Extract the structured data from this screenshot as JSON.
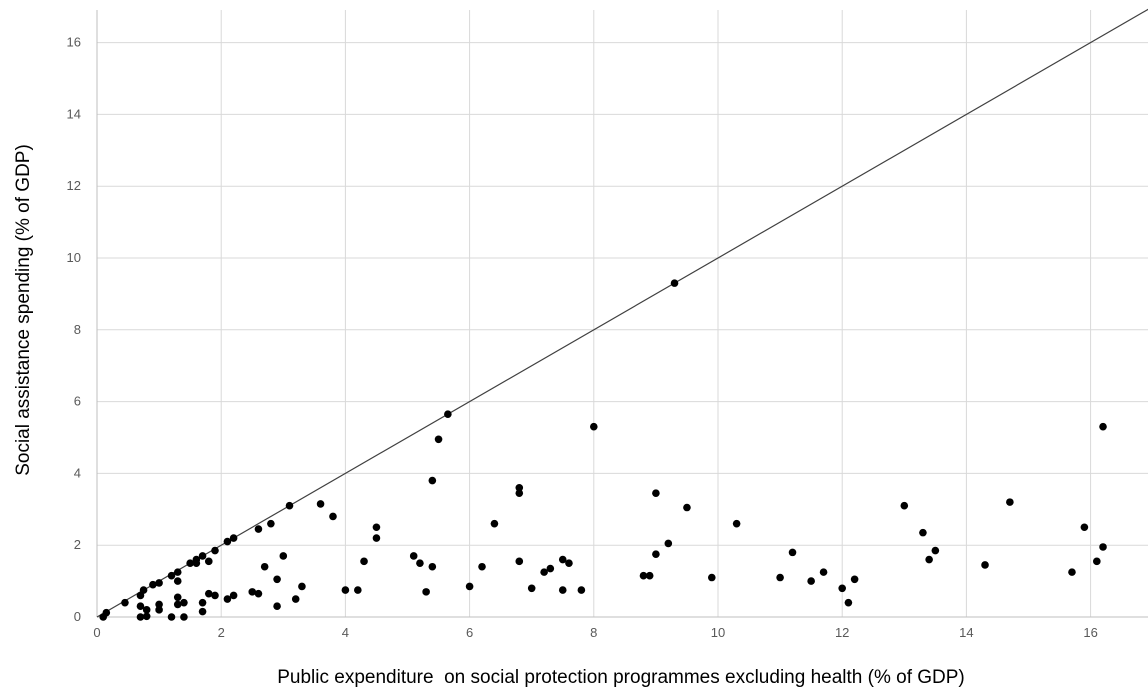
{
  "chart_data": {
    "type": "scatter",
    "xlabel": "Public expenditure  on social protection programmes excluding health (% of GDP)",
    "ylabel": "Social assistance spending (% of GDP)",
    "xlim": [
      0,
      17
    ],
    "ylim": [
      0,
      17
    ],
    "xticks": [
      0,
      2,
      4,
      6,
      8,
      10,
      12,
      14,
      16
    ],
    "yticks": [
      0,
      2,
      4,
      6,
      8,
      10,
      12,
      14,
      16
    ],
    "grid": "vertical and horizontal",
    "legend": "none",
    "reference_line": {
      "type": "y=x",
      "from": [
        0,
        0
      ],
      "to": [
        17,
        17
      ],
      "color": "#404040"
    },
    "marker_color": "#000000",
    "points": [
      [
        0.1,
        0.0
      ],
      [
        0.15,
        0.12
      ],
      [
        0.45,
        0.4
      ],
      [
        0.7,
        0.0
      ],
      [
        0.7,
        0.3
      ],
      [
        0.7,
        0.6
      ],
      [
        0.75,
        0.75
      ],
      [
        0.8,
        0.2
      ],
      [
        0.8,
        0.02
      ],
      [
        0.9,
        0.9
      ],
      [
        1.0,
        0.95
      ],
      [
        1.0,
        0.35
      ],
      [
        1.0,
        0.2
      ],
      [
        1.2,
        1.15
      ],
      [
        1.2,
        0.0
      ],
      [
        1.3,
        1.25
      ],
      [
        1.3,
        1.0
      ],
      [
        1.3,
        0.55
      ],
      [
        1.3,
        0.35
      ],
      [
        1.4,
        0.4
      ],
      [
        1.4,
        0.0
      ],
      [
        1.5,
        1.5
      ],
      [
        1.6,
        1.5
      ],
      [
        1.6,
        1.6
      ],
      [
        1.7,
        1.7
      ],
      [
        1.7,
        0.4
      ],
      [
        1.7,
        0.15
      ],
      [
        1.8,
        1.55
      ],
      [
        1.8,
        0.65
      ],
      [
        1.9,
        1.85
      ],
      [
        1.9,
        0.6
      ],
      [
        2.1,
        2.1
      ],
      [
        2.1,
        0.5
      ],
      [
        2.2,
        2.2
      ],
      [
        2.2,
        0.6
      ],
      [
        2.5,
        0.7
      ],
      [
        2.6,
        2.45
      ],
      [
        2.6,
        0.65
      ],
      [
        2.7,
        1.4
      ],
      [
        2.8,
        2.6
      ],
      [
        2.9,
        1.05
      ],
      [
        2.9,
        0.3
      ],
      [
        3.0,
        1.7
      ],
      [
        3.1,
        3.1
      ],
      [
        3.2,
        0.5
      ],
      [
        3.3,
        0.85
      ],
      [
        3.6,
        3.15
      ],
      [
        3.8,
        2.8
      ],
      [
        4.0,
        0.75
      ],
      [
        4.2,
        0.75
      ],
      [
        4.3,
        1.55
      ],
      [
        4.5,
        2.5
      ],
      [
        4.5,
        2.2
      ],
      [
        5.1,
        1.7
      ],
      [
        5.2,
        1.5
      ],
      [
        5.3,
        0.7
      ],
      [
        5.4,
        3.8
      ],
      [
        5.4,
        1.4
      ],
      [
        5.5,
        4.95
      ],
      [
        5.65,
        5.65
      ],
      [
        6.0,
        0.85
      ],
      [
        6.2,
        1.4
      ],
      [
        6.4,
        2.6
      ],
      [
        6.8,
        3.6
      ],
      [
        6.8,
        3.45
      ],
      [
        6.8,
        1.55
      ],
      [
        7.0,
        0.8
      ],
      [
        7.2,
        1.25
      ],
      [
        7.3,
        1.35
      ],
      [
        7.5,
        1.6
      ],
      [
        7.5,
        0.75
      ],
      [
        7.6,
        1.5
      ],
      [
        7.8,
        0.75
      ],
      [
        8.0,
        5.3
      ],
      [
        8.8,
        1.15
      ],
      [
        8.9,
        1.15
      ],
      [
        9.0,
        3.45
      ],
      [
        9.0,
        1.75
      ],
      [
        9.2,
        2.05
      ],
      [
        9.3,
        9.3
      ],
      [
        9.5,
        3.05
      ],
      [
        9.9,
        1.1
      ],
      [
        10.3,
        2.6
      ],
      [
        11.0,
        1.1
      ],
      [
        11.2,
        1.8
      ],
      [
        11.5,
        1.0
      ],
      [
        11.7,
        1.25
      ],
      [
        12.0,
        0.8
      ],
      [
        12.1,
        0.4
      ],
      [
        12.2,
        1.05
      ],
      [
        13.0,
        3.1
      ],
      [
        13.3,
        2.35
      ],
      [
        13.4,
        1.6
      ],
      [
        13.5,
        1.85
      ],
      [
        14.3,
        1.45
      ],
      [
        14.7,
        3.2
      ],
      [
        15.7,
        1.25
      ],
      [
        15.9,
        2.5
      ],
      [
        16.1,
        1.55
      ],
      [
        16.2,
        5.3
      ],
      [
        16.2,
        1.95
      ]
    ]
  }
}
